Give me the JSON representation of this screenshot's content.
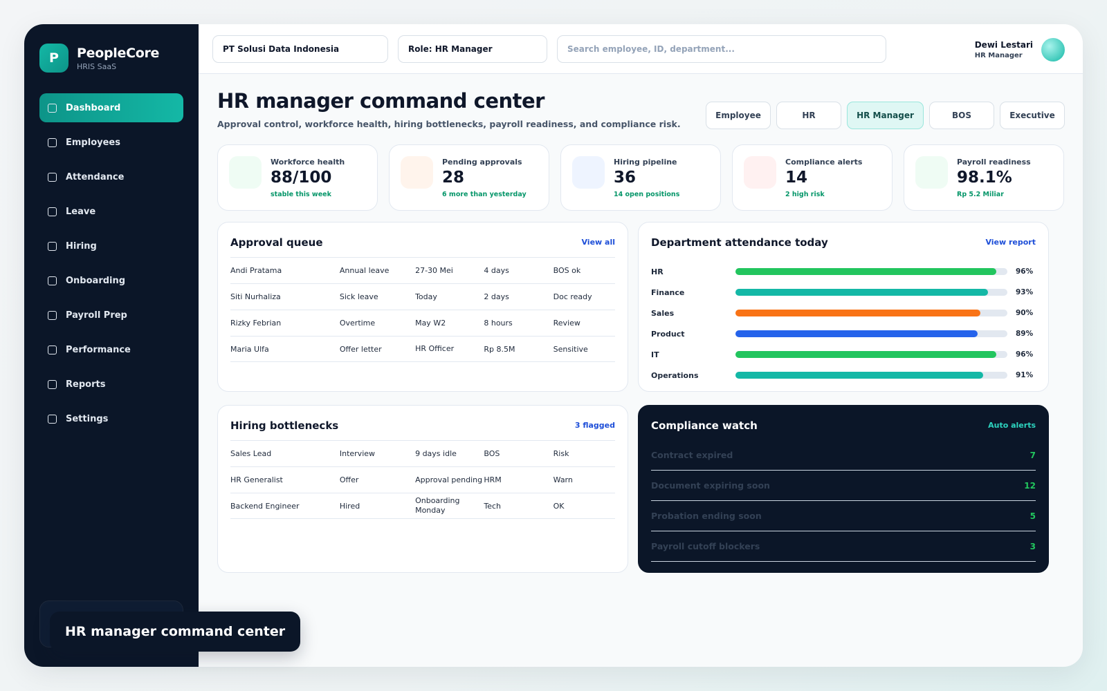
{
  "brand": {
    "logo_letter": "P",
    "name": "PeopleCore",
    "sub": "HRIS SaaS"
  },
  "sidebar": {
    "items": [
      {
        "label": "Dashboard",
        "active": true
      },
      {
        "label": "Employees"
      },
      {
        "label": "Attendance"
      },
      {
        "label": "Leave"
      },
      {
        "label": "Hiring"
      },
      {
        "label": "Onboarding"
      },
      {
        "label": "Payroll Prep"
      },
      {
        "label": "Performance"
      },
      {
        "label": "Reports"
      },
      {
        "label": "Settings"
      }
    ]
  },
  "topbar": {
    "company": "PT Solusi Data Indonesia",
    "role": "Role: HR Manager",
    "search_placeholder": "Search employee, ID, department...",
    "user_name": "Dewi Lestari",
    "user_role": "HR Manager"
  },
  "page": {
    "title": "HR manager command center",
    "subtitle": "Approval control, workforce health, hiring bottlenecks, payroll readiness, and compliance risk."
  },
  "role_tabs": [
    {
      "label": "Employee"
    },
    {
      "label": "HR"
    },
    {
      "label": "HR Manager",
      "active": true
    },
    {
      "label": "BOS"
    },
    {
      "label": "Executive"
    }
  ],
  "kpis": [
    {
      "label": "Workforce health",
      "value": "88/100",
      "note": "stable this week",
      "color": "#effcf4"
    },
    {
      "label": "Pending approvals",
      "value": "28",
      "note": "6 more than yesterday",
      "color": "#fff4ec"
    },
    {
      "label": "Hiring pipeline",
      "value": "36",
      "note": "14 open positions",
      "color": "#eef4ff"
    },
    {
      "label": "Compliance alerts",
      "value": "14",
      "note": "2 high risk",
      "color": "#fff1f1"
    },
    {
      "label": "Payroll readiness",
      "value": "98.1%",
      "note": "Rp 5.2 Miliar",
      "color": "#effcf4"
    }
  ],
  "approval_queue": {
    "title": "Approval queue",
    "link": "View all",
    "rows": [
      [
        "Andi Pratama",
        "Annual leave",
        "27-30 Mei",
        "4 days",
        "BOS ok"
      ],
      [
        "Siti Nurhaliza",
        "Sick leave",
        "Today",
        "2 days",
        "Doc ready"
      ],
      [
        "Rizky Febrian",
        "Overtime",
        "May W2",
        "8 hours",
        "Review"
      ],
      [
        "Maria Ulfa",
        "Offer letter",
        "HR Officer",
        "Rp 8.5M",
        "Sensitive"
      ]
    ]
  },
  "attendance": {
    "title": "Department attendance today",
    "link": "View report",
    "rows": [
      {
        "dept": "HR",
        "pct_label": "96%",
        "value": 96,
        "color": "#22c55e"
      },
      {
        "dept": "Finance",
        "pct_label": "93%",
        "value": 93,
        "color": "#14b8a6"
      },
      {
        "dept": "Sales",
        "pct_label": "90%",
        "value": 90,
        "color": "#f97316"
      },
      {
        "dept": "Product",
        "pct_label": "89%",
        "value": 89,
        "color": "#2563eb"
      },
      {
        "dept": "IT",
        "pct_label": "96%",
        "value": 96,
        "color": "#22c55e"
      },
      {
        "dept": "Operations",
        "pct_label": "91%",
        "value": 91,
        "color": "#14b8a6"
      }
    ]
  },
  "hiring": {
    "title": "Hiring bottlenecks",
    "link": "3 flagged",
    "rows": [
      [
        "Sales Lead",
        "Interview",
        "9 days idle",
        "BOS",
        "Risk"
      ],
      [
        "HR Generalist",
        "Offer",
        "Approval pending",
        "HRM",
        "Warn"
      ],
      [
        "Backend Engineer",
        "Hired",
        "Onboarding Monday",
        "Tech",
        "OK"
      ]
    ]
  },
  "compliance": {
    "title": "Compliance watch",
    "link": "Auto alerts",
    "rows": [
      {
        "label": "Contract expired",
        "value": "7"
      },
      {
        "label": "Document expiring soon",
        "value": "12"
      },
      {
        "label": "Probation ending soon",
        "value": "5"
      },
      {
        "label": "Payroll cutoff blockers",
        "value": "3"
      }
    ]
  },
  "toast": {
    "text": "HR manager command center"
  }
}
